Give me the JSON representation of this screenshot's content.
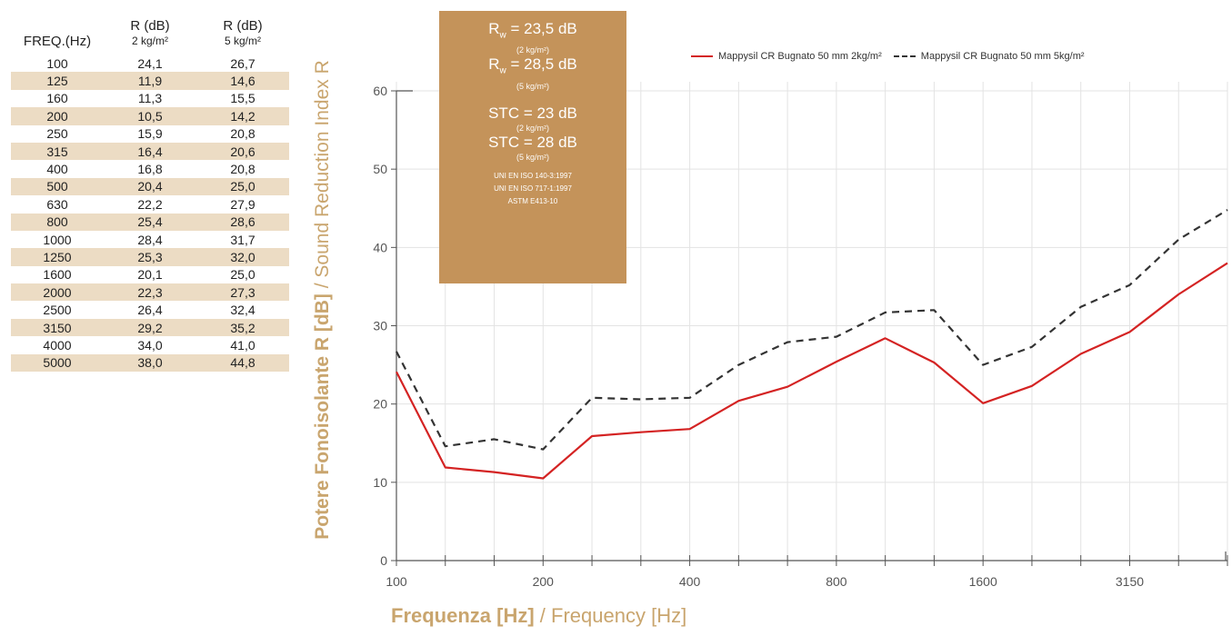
{
  "table": {
    "headers": [
      {
        "main": "FREQ.(Hz)",
        "sub": ""
      },
      {
        "main": "R (dB)",
        "sub": "2 kg/m²"
      },
      {
        "main": "R (dB)",
        "sub": "5 kg/m²"
      }
    ],
    "rows": [
      [
        "100",
        "24,1",
        "26,7"
      ],
      [
        "125",
        "11,9",
        "14,6"
      ],
      [
        "160",
        "11,3",
        "15,5"
      ],
      [
        "200",
        "10,5",
        "14,2"
      ],
      [
        "250",
        "15,9",
        "20,8"
      ],
      [
        "315",
        "16,4",
        "20,6"
      ],
      [
        "400",
        "16,8",
        "20,8"
      ],
      [
        "500",
        "20,4",
        "25,0"
      ],
      [
        "630",
        "22,2",
        "27,9"
      ],
      [
        "800",
        "25,4",
        "28,6"
      ],
      [
        "1000",
        "28,4",
        "31,7"
      ],
      [
        "1250",
        "25,3",
        "32,0"
      ],
      [
        "1600",
        "20,1",
        "25,0"
      ],
      [
        "2000",
        "22,3",
        "27,3"
      ],
      [
        "2500",
        "26,4",
        "32,4"
      ],
      [
        "3150",
        "29,2",
        "35,2"
      ],
      [
        "4000",
        "34,0",
        "41,0"
      ],
      [
        "5000",
        "38,0",
        "44,8"
      ]
    ]
  },
  "rating_box": {
    "rw1_value": "= 23,5 dB",
    "rw1_sub": "(2 kg/m²)",
    "rw2_value": "= 28,5 dB",
    "rw2_sub": "(5 kg/m²)",
    "stc1": "STC = 23 dB",
    "stc1_sub": "(2 kg/m²)",
    "stc2": "STC = 28 dB",
    "stc2_sub": "(5 kg/m²)",
    "standards": [
      "UNI EN ISO 140-3:1997",
      "UNI EN ISO 717-1:1997",
      "ASTM E413-10"
    ]
  },
  "axis_titles": {
    "y_bold": "Potere Fonoisolante R [dB]",
    "y_rest": " / Sound Reduction Index R",
    "x_bold": "Frequenza [Hz]",
    "x_rest": " / Frequency [Hz]"
  },
  "colors": {
    "series_2kg": "#d42323",
    "series_5kg": "#333333",
    "accent": "#c9a56e",
    "table_stripe": "#ecdcc4",
    "box": "#c4935a"
  },
  "chart_data": {
    "type": "line",
    "x": [
      100,
      125,
      160,
      200,
      250,
      315,
      400,
      500,
      630,
      800,
      1000,
      1250,
      1600,
      2000,
      2500,
      3150,
      4000,
      5000
    ],
    "x_tick_labels": [
      "100",
      "200",
      "400",
      "800",
      "1600",
      "3150"
    ],
    "y_ticks": [
      0,
      10,
      20,
      30,
      40,
      50,
      60
    ],
    "ylim": [
      0,
      60
    ],
    "grid": true,
    "legend_position": "top-right",
    "series": [
      {
        "name": "Mappysil CR Bugnato 50 mm 2kg/m²",
        "style": "solid",
        "color": "#d42323",
        "values": [
          24.1,
          11.9,
          11.3,
          10.5,
          15.9,
          16.4,
          16.8,
          20.4,
          22.2,
          25.4,
          28.4,
          25.3,
          20.1,
          22.3,
          26.4,
          29.2,
          34.0,
          38.0
        ]
      },
      {
        "name": "Mappysil CR Bugnato 50 mm 5kg/m²",
        "style": "dashed",
        "color": "#333333",
        "values": [
          26.7,
          14.6,
          15.5,
          14.2,
          20.8,
          20.6,
          20.8,
          25.0,
          27.9,
          28.6,
          31.7,
          32.0,
          25.0,
          27.3,
          32.4,
          35.2,
          41.0,
          44.8
        ]
      }
    ]
  }
}
